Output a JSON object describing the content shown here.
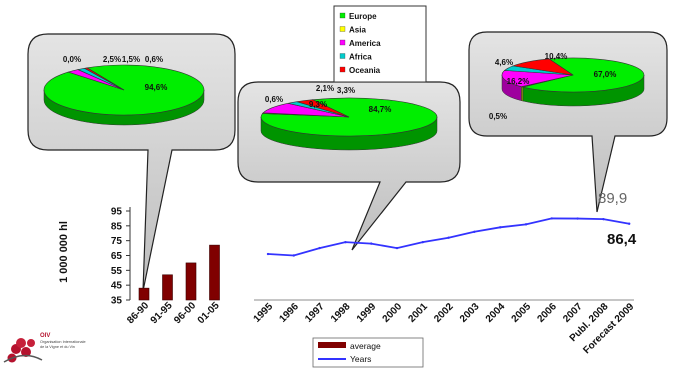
{
  "chart_data": [
    {
      "type": "bar",
      "categories": [
        "86-90",
        "91-95",
        "96-00",
        "01-05"
      ],
      "values": [
        43,
        52,
        60,
        72
      ],
      "ylabel": "1 000 000 hl",
      "ylim": [
        35,
        95
      ],
      "yticks": [
        35,
        45,
        55,
        65,
        75,
        85,
        95
      ],
      "color": "#800000",
      "legend_label": "average"
    },
    {
      "type": "line",
      "x": [
        "1995",
        "1996",
        "1997",
        "1998",
        "1999",
        "2000",
        "2001",
        "2002",
        "2003",
        "2004",
        "2005",
        "2006",
        "2007",
        "Publ. 2008",
        "Forecast 2009"
      ],
      "values": [
        66,
        65,
        70,
        74,
        73,
        70,
        74,
        77,
        81,
        84,
        86,
        90,
        89.9,
        89.5,
        86.4
      ],
      "color": "#3333ff",
      "legend_label": "Years",
      "annotations": [
        {
          "label": "89,9"
        },
        {
          "label": "86,4"
        }
      ]
    },
    {
      "type": "pie",
      "categories": [
        "Europe",
        "Asia",
        "America",
        "Africa",
        "Oceania"
      ],
      "values": [
        94.6,
        0.0,
        2.5,
        1.5,
        0.6
      ],
      "labels": [
        "94,6%",
        "0,0%",
        "2,5%",
        "1,5%",
        "0,6%"
      ]
    },
    {
      "type": "pie",
      "categories": [
        "Europe",
        "Asia",
        "America",
        "Africa",
        "Oceania"
      ],
      "values": [
        84.7,
        0.6,
        9.3,
        2.1,
        3.3
      ],
      "labels": [
        "84,7%",
        "0,6%",
        "9,3%",
        "2,1%",
        "3,3%"
      ]
    },
    {
      "type": "pie",
      "categories": [
        "Europe",
        "Asia",
        "America",
        "Africa",
        "Oceania"
      ],
      "values": [
        67.0,
        0.5,
        16.2,
        4.6,
        10.4
      ],
      "labels": [
        "67,0%",
        "0,5%",
        "16,2%",
        "4,6%",
        "10,4%"
      ]
    }
  ],
  "legend_regions": [
    {
      "name": "Europe",
      "color": "#00ee00"
    },
    {
      "name": "Asia",
      "color": "#ffff00"
    },
    {
      "name": "America",
      "color": "#ff00ff"
    },
    {
      "name": "Africa",
      "color": "#00cccc"
    },
    {
      "name": "Oceania",
      "color": "#ff0000"
    }
  ],
  "logo": {
    "initials": "OIV",
    "lines": [
      "Organisation Internationale",
      "de la Vigne et du Vin"
    ]
  }
}
